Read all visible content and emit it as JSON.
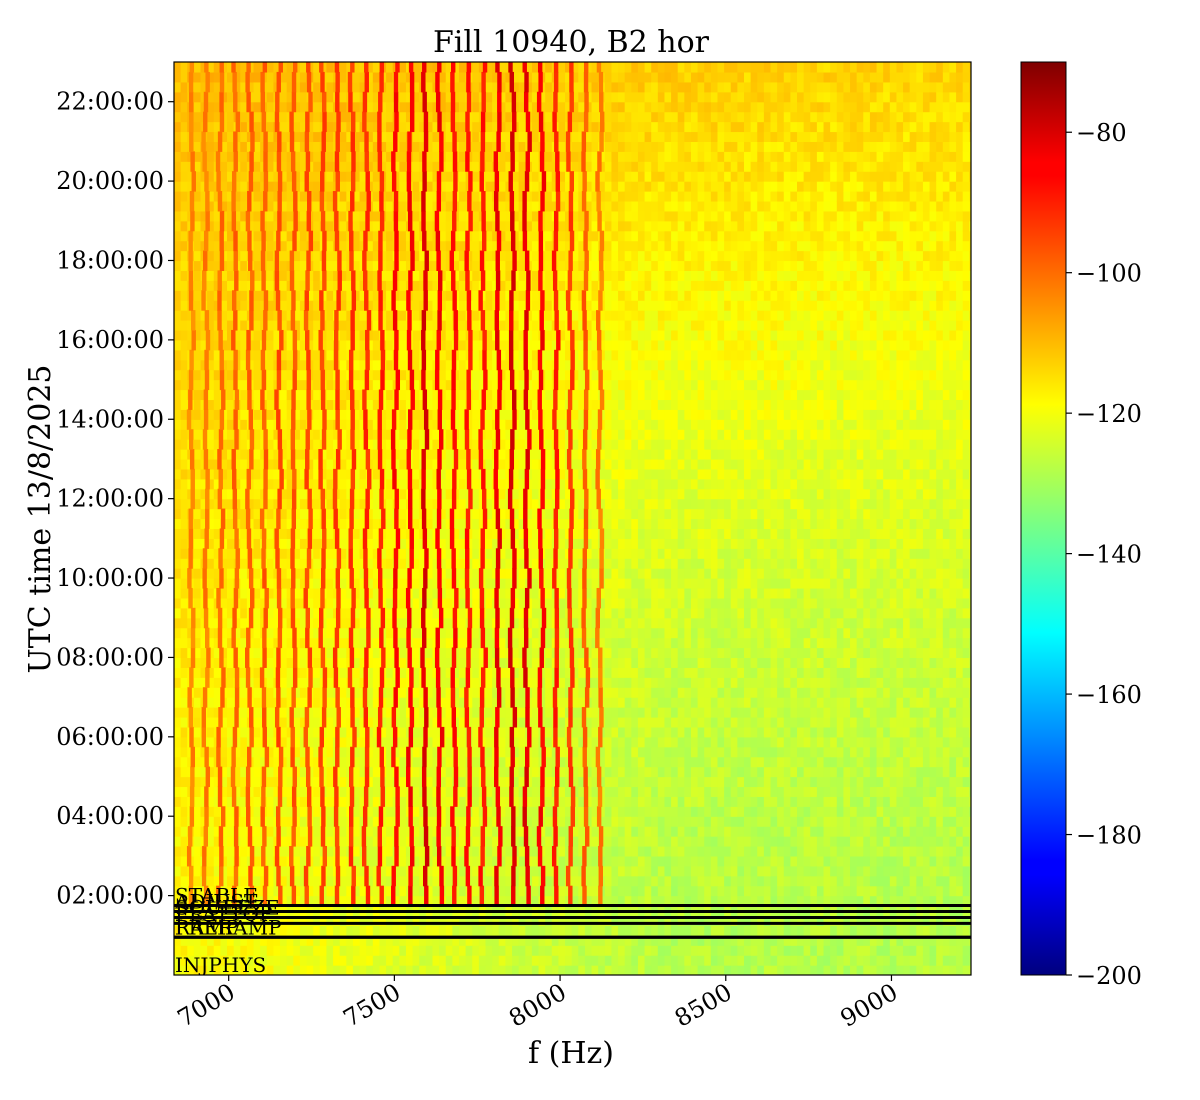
{
  "chart_data": {
    "type": "heatmap",
    "title": "Fill 10940, B2 hor",
    "xlabel": "f (Hz)",
    "ylabel": "UTC time 13/8/2025",
    "xlim": [
      6835,
      9240
    ],
    "ylim_hours": [
      0.0,
      23.0
    ],
    "x_ticks": [
      7000,
      7500,
      8000,
      8500,
      9000
    ],
    "y_tick_labels": [
      "02:00:00",
      "04:00:00",
      "06:00:00",
      "08:00:00",
      "10:00:00",
      "12:00:00",
      "14:00:00",
      "16:00:00",
      "18:00:00",
      "20:00:00",
      "22:00:00"
    ],
    "y_tick_hours": [
      2,
      4,
      6,
      8,
      10,
      12,
      14,
      16,
      18,
      20,
      22
    ],
    "colormap": "jet",
    "colorbar": {
      "min": -200,
      "max": -70,
      "ticks": [
        -80,
        -100,
        -120,
        -140,
        -160,
        -180,
        -200
      ],
      "tick_labels": [
        "−80",
        "−100",
        "−120",
        "−140",
        "−160",
        "−180",
        "−200"
      ]
    },
    "background_level_db": {
      "low_freq_early": -118,
      "low_freq_late": -110,
      "high_freq_early": -128,
      "high_freq_late": -113
    },
    "harmonic_lines": {
      "start_hz": 6888,
      "spacing_hz": 44,
      "count": 29,
      "peak_levels_db": [
        -103,
        -102,
        -100,
        -99,
        -98,
        -98,
        -96,
        -97,
        -96,
        -95,
        -94,
        -93,
        -92,
        -90,
        -87,
        -86,
        -82,
        -85,
        -88,
        -89,
        -89,
        -84,
        -82,
        -83,
        -86,
        -90,
        -94,
        -98,
        -102
      ]
    },
    "beam_modes": [
      {
        "label": "INJPHYS",
        "hours": 0.0
      },
      {
        "label": "PRERAMP",
        "hours": 0.95
      },
      {
        "label": "RAMP",
        "hours": 0.95
      },
      {
        "label": "FLATTOP",
        "hours": 1.3
      },
      {
        "label": "SQUEEZE",
        "hours": 1.45
      },
      {
        "label": "ADJUST",
        "hours": 1.6
      },
      {
        "label": "STABLE",
        "hours": 1.75
      }
    ]
  }
}
